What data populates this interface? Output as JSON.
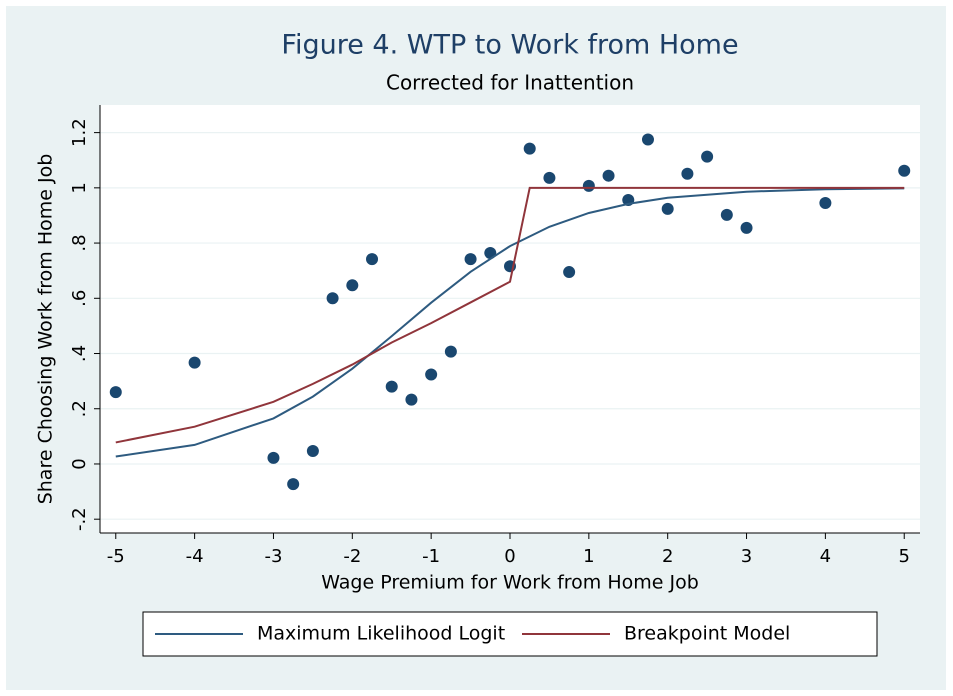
{
  "chart_data": {
    "type": "scatter",
    "title": "Figure 4. WTP to Work from Home",
    "subtitle": "Corrected for Inattention",
    "x_label": "Wage Premium for Work from Home Job",
    "y_label": "Share Choosing Work from Home Job",
    "xlim": [
      -5.2,
      5.2
    ],
    "ylim": [
      -0.25,
      1.3
    ],
    "xticks": [
      -5,
      -4,
      -3,
      -2,
      -1,
      0,
      1,
      2,
      3,
      4,
      5
    ],
    "yticks": [
      {
        "value": -0.2,
        "label": "-.2"
      },
      0,
      {
        "value": 0.2,
        "label": ".2"
      },
      {
        "value": 0.4,
        "label": ".4"
      },
      {
        "value": 0.6,
        "label": ".6"
      },
      {
        "value": 0.8,
        "label": ".8"
      },
      1,
      1.2
    ],
    "grid": true,
    "series": [
      {
        "type": "scatter",
        "color": "#1a476f",
        "x": [
          -5,
          -4,
          -3,
          -2.75,
          -2.5,
          -2.25,
          -2,
          -1.75,
          -1.5,
          -1.25,
          -1,
          -0.75,
          -0.5,
          -0.25,
          0,
          0.25,
          0.5,
          0.75,
          1,
          1.25,
          1.5,
          1.75,
          2,
          2.25,
          2.5,
          2.75,
          3,
          4,
          5
        ],
        "values": [
          0.26,
          0.367,
          0.022,
          -0.073,
          0.047,
          0.6,
          0.647,
          0.742,
          0.28,
          0.233,
          0.324,
          0.407,
          0.742,
          0.764,
          0.716,
          1.142,
          1.036,
          0.695,
          1.007,
          1.044,
          0.956,
          1.175,
          0.924,
          1.051,
          1.113,
          0.902,
          0.855,
          0.945,
          1.062
        ]
      },
      {
        "type": "line",
        "name": "Maximum Likelihood Logit",
        "color": "#2e5b80",
        "x": [
          -5,
          -4,
          -3,
          -2.5,
          -2,
          -1.5,
          -1,
          -0.5,
          0,
          0.5,
          1,
          1.5,
          2,
          3,
          4,
          5
        ],
        "values": [
          0.027,
          0.069,
          0.165,
          0.244,
          0.345,
          0.463,
          0.584,
          0.696,
          0.789,
          0.859,
          0.909,
          0.942,
          0.964,
          0.986,
          0.995,
          0.998
        ]
      },
      {
        "type": "line",
        "name": "Breakpoint Model",
        "color": "#90353b",
        "x": [
          -5,
          -4,
          -3,
          -2.5,
          -2,
          -1.5,
          -1,
          -0.5,
          0,
          0.25,
          5
        ],
        "values": [
          0.078,
          0.135,
          0.225,
          0.29,
          0.36,
          0.44,
          0.51,
          0.585,
          0.66,
          1.0,
          1.0
        ]
      }
    ]
  }
}
